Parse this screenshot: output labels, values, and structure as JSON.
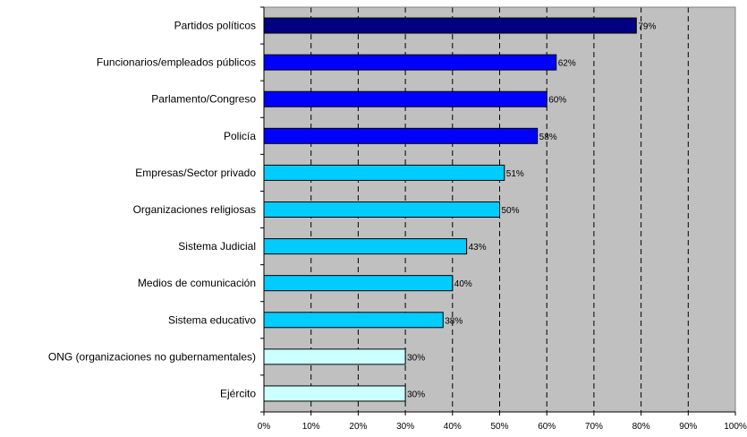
{
  "chart_data": {
    "type": "bar",
    "orientation": "horizontal",
    "grid": true,
    "xlim": [
      0,
      100
    ],
    "x_ticks": [
      0,
      10,
      20,
      30,
      40,
      50,
      60,
      70,
      80,
      90,
      100
    ],
    "x_tick_labels": [
      "0%",
      "10%",
      "20%",
      "30%",
      "40%",
      "50%",
      "60%",
      "70%",
      "80%",
      "90%",
      "100%"
    ],
    "title": "",
    "xlabel": "",
    "ylabel": "",
    "categories": [
      "Partidos políticos",
      "Funcionarios/empleados públicos",
      "Parlamento/Congreso",
      "Policía",
      "Empresas/Sector privado",
      "Organizaciones religiosas",
      "Sistema Judicial",
      "Medios de comunicación",
      "Sistema educativo",
      "ONG (organizaciones no gubernamentales)",
      "Ejército"
    ],
    "values": [
      79,
      62,
      60,
      58,
      51,
      50,
      43,
      40,
      38,
      30,
      30
    ],
    "data_labels": [
      "79%",
      "62%",
      "60%",
      "58%",
      "51%",
      "50%",
      "43%",
      "40%",
      "38%",
      "30%",
      "30%"
    ],
    "bar_colors": [
      "#000080",
      "#0000ff",
      "#0000ff",
      "#0000ff",
      "#00ccff",
      "#00ccff",
      "#00ccff",
      "#00ccff",
      "#00ccff",
      "#ccffff",
      "#ccffff"
    ],
    "plot_background": "#c0c0c0"
  }
}
